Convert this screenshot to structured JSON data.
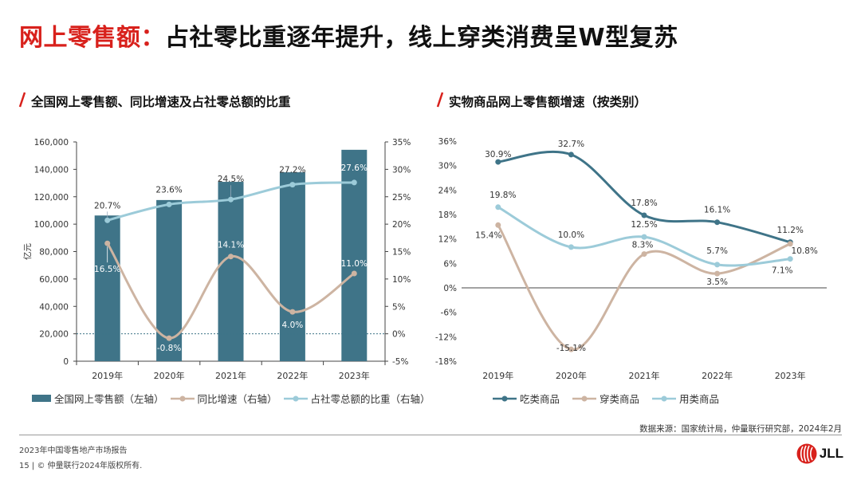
{
  "header": {
    "title_red": "网上零售额：",
    "title_black": "占社零比重逐年提升，线上穿类消费呈W型复苏"
  },
  "left": {
    "subtitle": "全国网上零售额、同比增速及占社零总额的比重"
  },
  "right": {
    "subtitle": "实物商品网上零售额增速（按类别）"
  },
  "colors": {
    "brand_red": "#d8211c",
    "bar": "#3f7488",
    "growth": "#cdb4a2",
    "share": "#9ccbd9",
    "food": "#3f7488",
    "clothing": "#cdb4a2",
    "daily": "#9ccbd9"
  },
  "chart_data": [
    {
      "type": "bar",
      "categories": [
        "2019年",
        "2020年",
        "2021年",
        "2022年",
        "2023年"
      ],
      "ylabel": "亿元",
      "ylim": [
        0,
        160000
      ],
      "y2lim": [
        -5,
        35
      ],
      "yticks": [
        "0",
        "20,000",
        "40,000",
        "60,000",
        "80,000",
        "100,000",
        "120,000",
        "140,000",
        "160,000"
      ],
      "y2ticks": [
        "-5%",
        "0%",
        "5%",
        "10%",
        "15%",
        "20%",
        "25%",
        "30%",
        "35%"
      ],
      "series": [
        {
          "name": "全国网上零售额（左轴）",
          "type": "bar",
          "axis": "left",
          "values": [
            106324,
            117601,
            130884,
            137853,
            154264
          ]
        },
        {
          "name": "同比增速（右轴）",
          "type": "line",
          "axis": "right",
          "values": [
            16.5,
            -0.8,
            14.1,
            4.0,
            11.0
          ],
          "labels": [
            "16.5%",
            "-0.8%",
            "14.1%",
            "4.0%",
            "11.0%"
          ]
        },
        {
          "name": "占社零总额的比重（右轴）",
          "type": "line",
          "axis": "right",
          "values": [
            20.7,
            23.6,
            24.5,
            27.2,
            27.6
          ],
          "labels": [
            "20.7%",
            "23.6%",
            "24.5%",
            "27.2%",
            "27.6%"
          ]
        }
      ],
      "legend": "bottom",
      "reference_line_right": 0
    },
    {
      "type": "line",
      "categories": [
        "2019年",
        "2020年",
        "2021年",
        "2022年",
        "2023年"
      ],
      "ylim": [
        -18,
        36
      ],
      "yticks": [
        "-18%",
        "-12%",
        "-6%",
        "0%",
        "6%",
        "12%",
        "18%",
        "24%",
        "30%",
        "36%"
      ],
      "series": [
        {
          "name": "吃类商品",
          "values": [
            30.9,
            32.7,
            17.8,
            16.1,
            11.2
          ],
          "labels": [
            "30.9%",
            "32.7%",
            "17.8%",
            "16.1%",
            "11.2%"
          ]
        },
        {
          "name": "穿类商品",
          "values": [
            15.4,
            -15.1,
            8.3,
            3.5,
            10.8
          ],
          "labels": [
            "15.4%",
            "-15.1%",
            "8.3%",
            "3.5%",
            "10.8%"
          ]
        },
        {
          "name": "用类商品",
          "values": [
            19.8,
            10.0,
            12.5,
            5.7,
            7.1
          ],
          "labels": [
            "19.8%",
            "10.0%",
            "12.5%",
            "5.7%",
            "7.1%"
          ]
        }
      ],
      "legend": "bottom"
    }
  ],
  "source": "数据来源：国家统计局，仲量联行研究部，2024年2月",
  "footer": {
    "report": "2023年中国零售地产市场报告",
    "page": "15",
    "separator": "|",
    "copyright": "© 仲量联行2024年版权所有."
  },
  "logo": {
    "text": "JLL"
  }
}
